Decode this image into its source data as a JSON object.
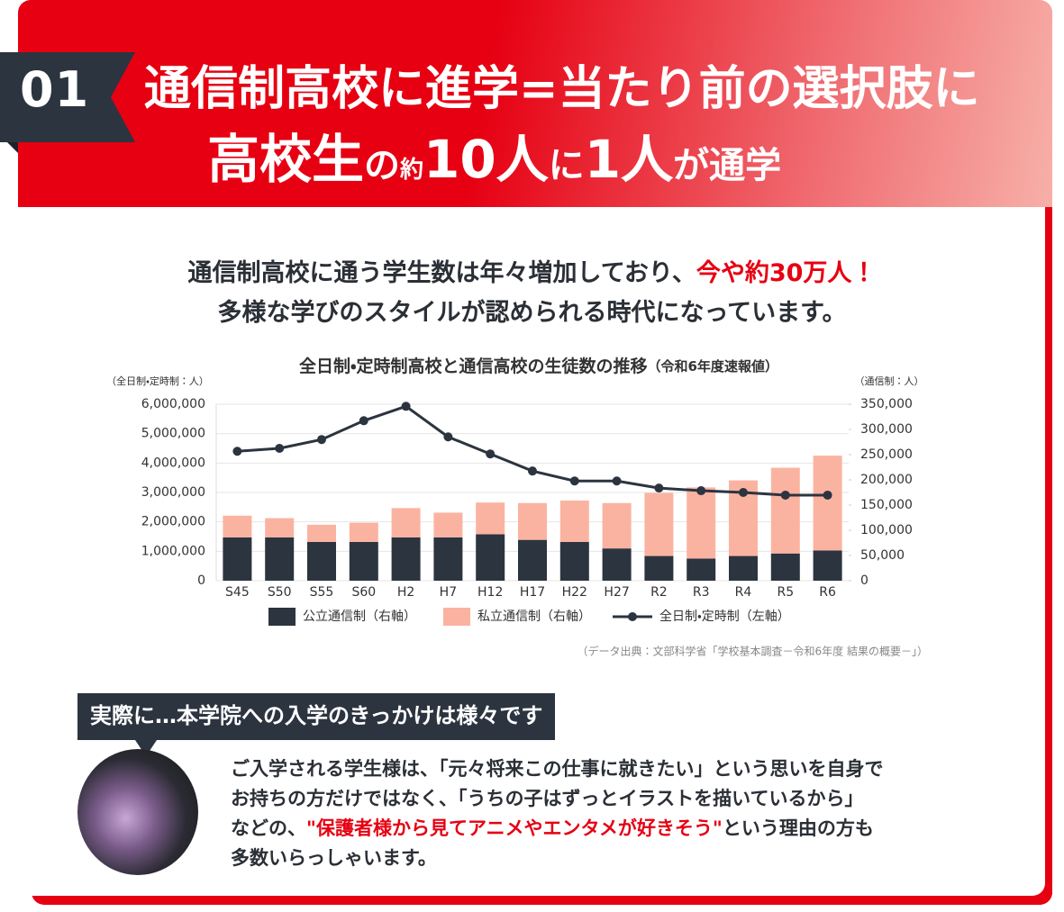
{
  "header": {
    "badge": "01",
    "title_line1": "通信制高校に進学=当たり前の選択肢に",
    "title_line2": [
      "高校生",
      "の",
      "約",
      "10人",
      "に",
      "1人",
      "が通学"
    ]
  },
  "lead": {
    "line1": "通信制高校に通う学生数は年々増加しており、",
    "highlight": "今や約30万人！",
    "line2": "多様な学びのスタイルが認められる時代になっています。"
  },
  "chart_data": {
    "type": "bar-line",
    "title": "全日制・定時制高校と通信高校の生徒数の推移",
    "subtitle": "（令和6年度速報値）",
    "y_label": "（全日制・定時制：人）",
    "y2_label": "（通信制：人）",
    "categories": [
      "S45",
      "S50",
      "S55",
      "S60",
      "H2",
      "H7",
      "H12",
      "H17",
      "H22",
      "H27",
      "R2",
      "R3",
      "R4",
      "R5",
      "R6"
    ],
    "series": [
      {
        "name": "公立通信制（右軸）",
        "kind": "bar",
        "axis": "y2",
        "color": "#2c3440",
        "values": [
          86000,
          86000,
          77000,
          77000,
          86000,
          86000,
          92000,
          81000,
          77000,
          64000,
          49000,
          44000,
          49000,
          54000,
          60000
        ]
      },
      {
        "name": "私立通信制（右軸）",
        "kind": "bar",
        "axis": "y2",
        "color": "#fbb3a1",
        "values": [
          43000,
          38000,
          34000,
          38000,
          58000,
          49000,
          63000,
          73000,
          82000,
          90000,
          125000,
          141000,
          150000,
          170000,
          188000
        ]
      },
      {
        "name": "全日制・定時制（左軸）",
        "kind": "line",
        "axis": "y",
        "color": "#2c3440",
        "values": [
          4400000,
          4500000,
          4800000,
          5440000,
          5930000,
          4890000,
          4310000,
          3730000,
          3390000,
          3390000,
          3150000,
          3060000,
          3000000,
          2910000,
          2910000
        ]
      }
    ],
    "ylim": [
      0,
      6000000
    ],
    "yticks": [
      0,
      {
        "value": 1000000,
        "label": "1,000,000"
      },
      {
        "value": 2000000,
        "label": "2,000,000"
      },
      {
        "value": 3000000,
        "label": "3,000,000"
      },
      {
        "value": 4000000,
        "label": "4,000,000"
      },
      {
        "value": 5000000,
        "label": "5,000,000"
      },
      {
        "value": 6000000,
        "label": "6,000,000"
      }
    ],
    "y2lim": [
      0,
      350000
    ],
    "y2ticks": [
      0,
      {
        "value": 50000,
        "label": "50,000"
      },
      {
        "value": 100000,
        "label": "100,000"
      },
      {
        "value": 150000,
        "label": "150,000"
      },
      {
        "value": 200000,
        "label": "200,000"
      },
      {
        "value": 250000,
        "label": "250,000"
      },
      {
        "value": 300000,
        "label": "300,000"
      },
      {
        "value": 350000,
        "label": "350,000"
      }
    ],
    "grid": true,
    "legend": "bottom",
    "source": "（データ出典：文部科学省「学校基本調査－令和6年度 結果の概要－」）"
  },
  "bubble": "実際に…本学院への入学のきっかけは様々です",
  "body": {
    "line1": "ご入学される学生様は、「元々将来この仕事に就きたい」という思いを自身で",
    "line2": "お持ちの方だけではなく、「うちの子はずっとイラストを描いているから」",
    "line3_pre": "などの、",
    "line3_highlight": "\"保護者様から見てアニメやエンタメが好きそう\"",
    "line3_post": "という理由の方も",
    "line4": "多数いらっしゃいます。"
  }
}
